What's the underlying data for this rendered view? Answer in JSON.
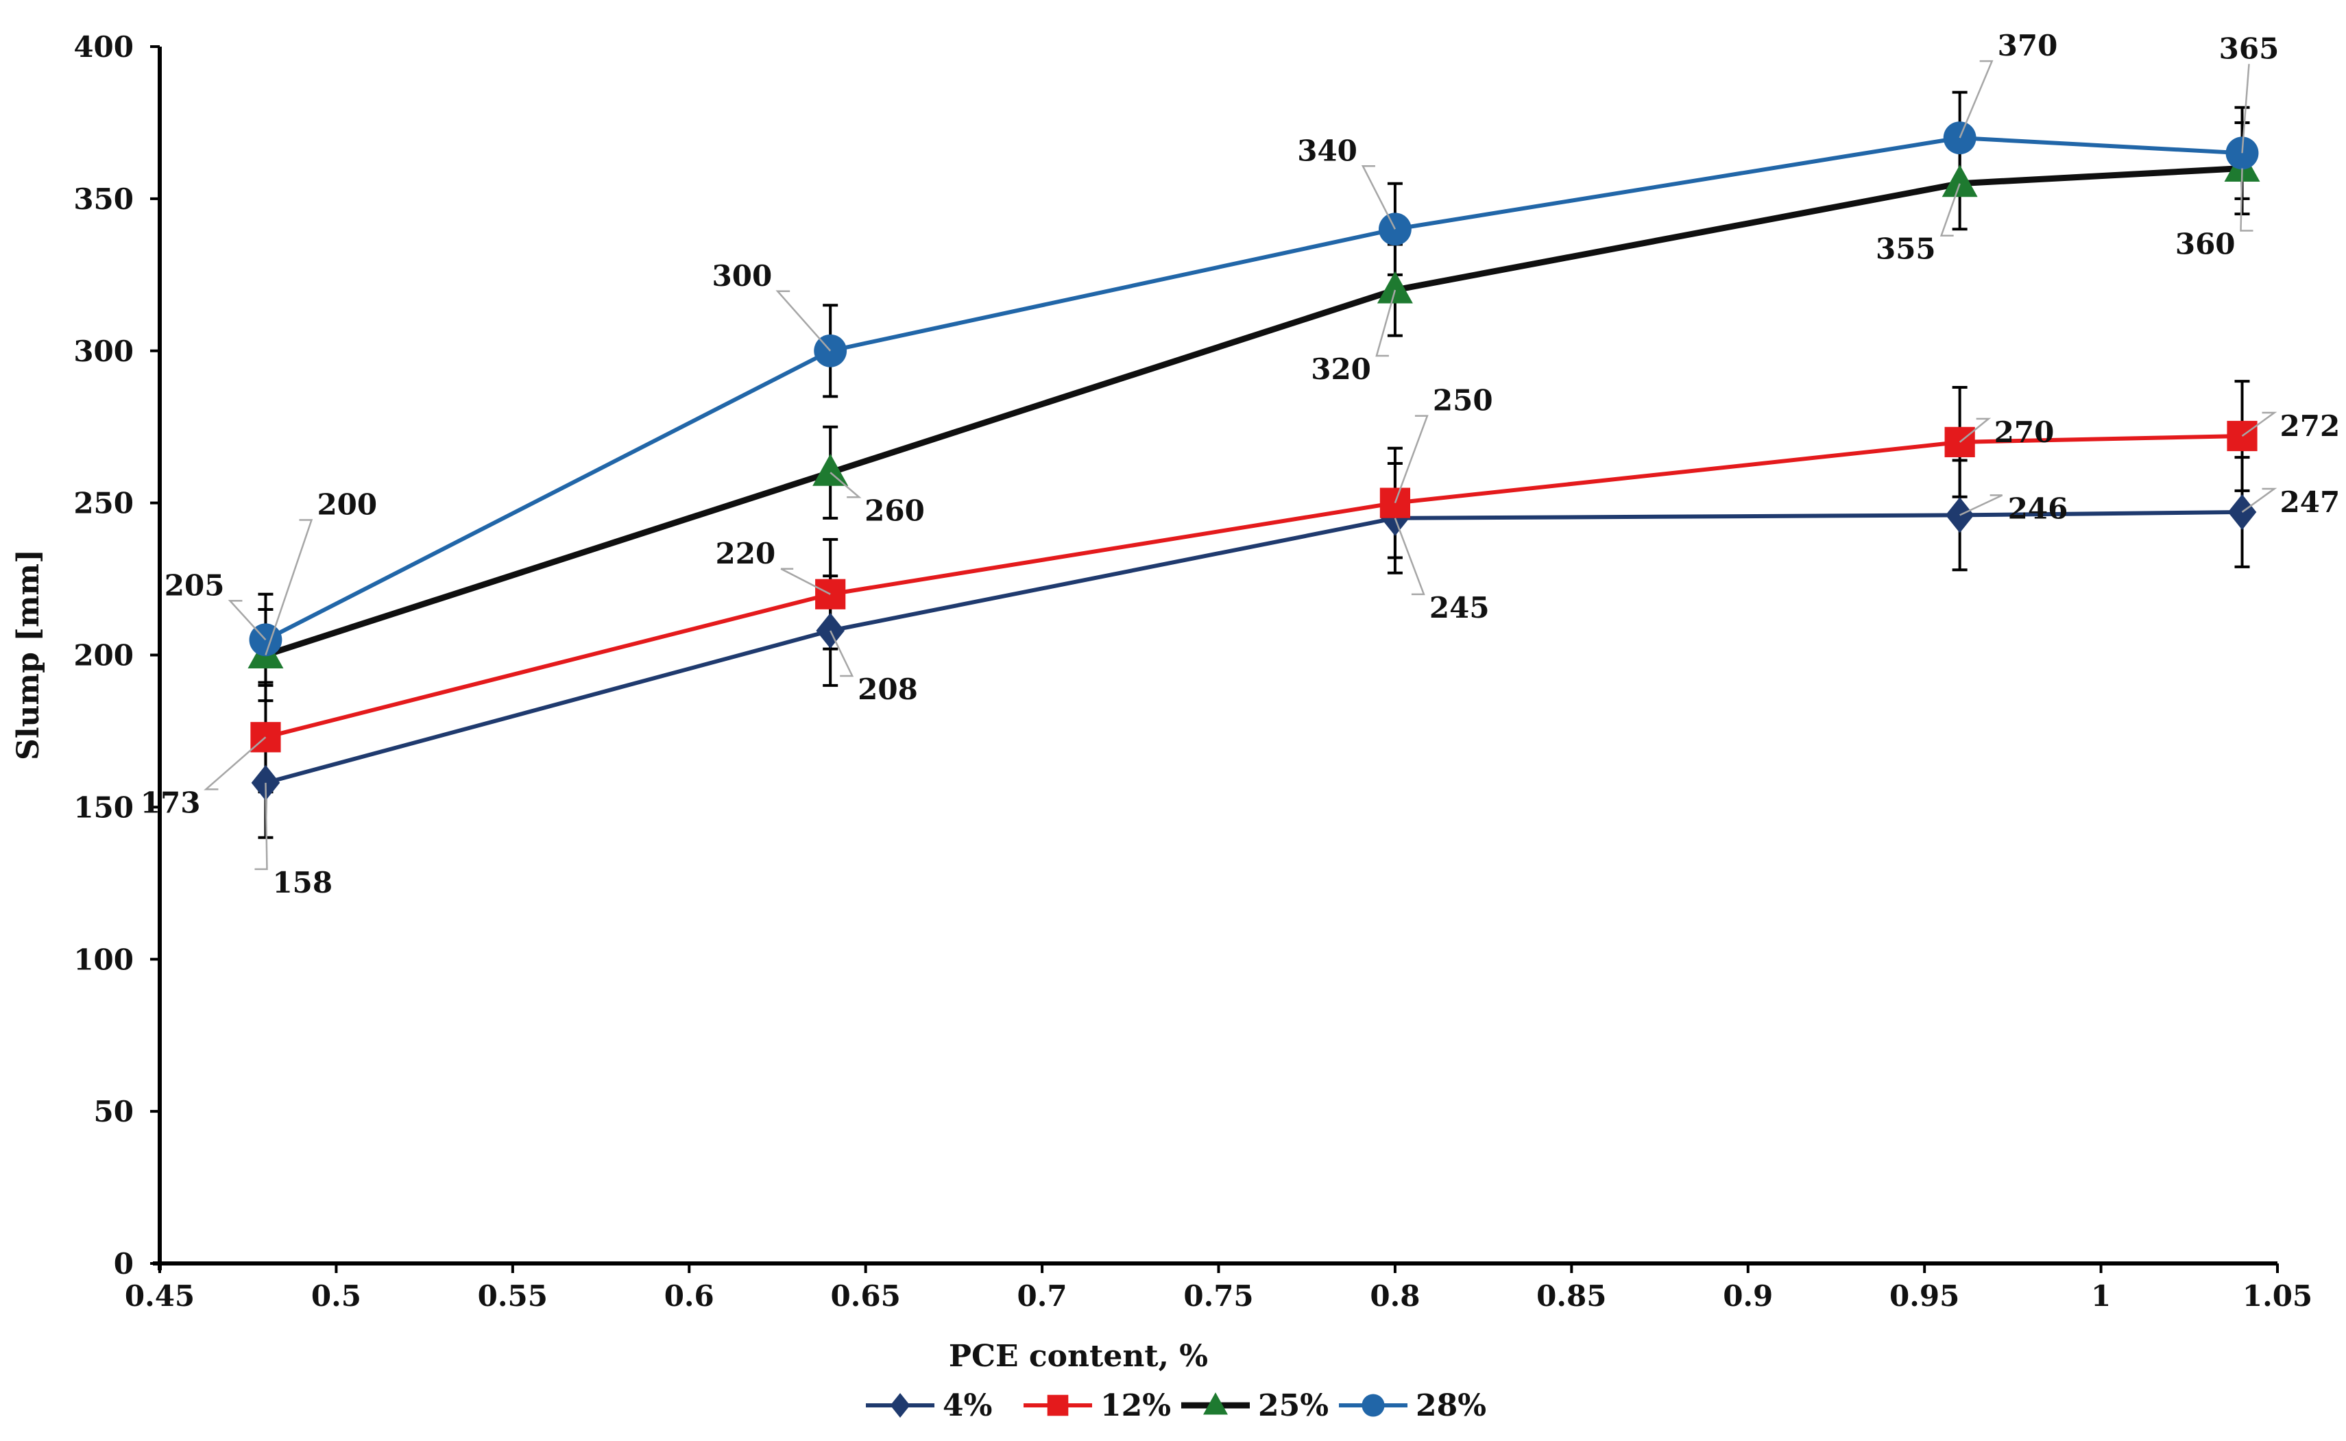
{
  "chart_data": {
    "type": "line",
    "title": "",
    "xlabel": "PCE content, %",
    "ylabel": "Slump [mm]",
    "xlim": [
      0.45,
      1.05
    ],
    "ylim": [
      0,
      400
    ],
    "x_ticks": [
      "0.45",
      "0.5",
      "0.55",
      "0.6",
      "0.65",
      "0.7",
      "0.75",
      "0.8",
      "0.85",
      "0.9",
      "0.95",
      "1",
      "1.05"
    ],
    "y_ticks": [
      "0",
      "50",
      "100",
      "150",
      "200",
      "250",
      "300",
      "350",
      "400"
    ],
    "grid": false,
    "legend_position": "bottom",
    "x": [
      0.48,
      0.64,
      0.8,
      0.96,
      1.04
    ],
    "series": [
      {
        "name": "4%",
        "color": "#1f3a6e",
        "marker": "diamond",
        "values": [
          158,
          208,
          245,
          246,
          247
        ],
        "error": [
          18,
          18,
          18,
          18,
          18
        ],
        "labels": [
          "158",
          "208",
          "245",
          "246",
          "247"
        ]
      },
      {
        "name": "12%",
        "color": "#e41a1c",
        "marker": "square",
        "values": [
          173,
          220,
          250,
          270,
          272
        ],
        "error": [
          18,
          18,
          18,
          18,
          18
        ],
        "labels": [
          "173",
          "220",
          "250",
          "270",
          "272"
        ]
      },
      {
        "name": "25%",
        "color": "#0f0f0f",
        "marker_color": "#1e7a30",
        "marker": "triangle",
        "values": [
          200,
          260,
          320,
          355,
          360
        ],
        "error": [
          15,
          15,
          15,
          15,
          15
        ],
        "labels": [
          "200",
          "260",
          "320",
          "355",
          "360"
        ]
      },
      {
        "name": "28%",
        "color": "#2166a8",
        "marker": "circle",
        "values": [
          205,
          300,
          340,
          370,
          365
        ],
        "error": [
          15,
          15,
          15,
          15,
          15
        ],
        "labels": [
          "205",
          "300",
          "340",
          "370",
          "365"
        ]
      }
    ]
  }
}
